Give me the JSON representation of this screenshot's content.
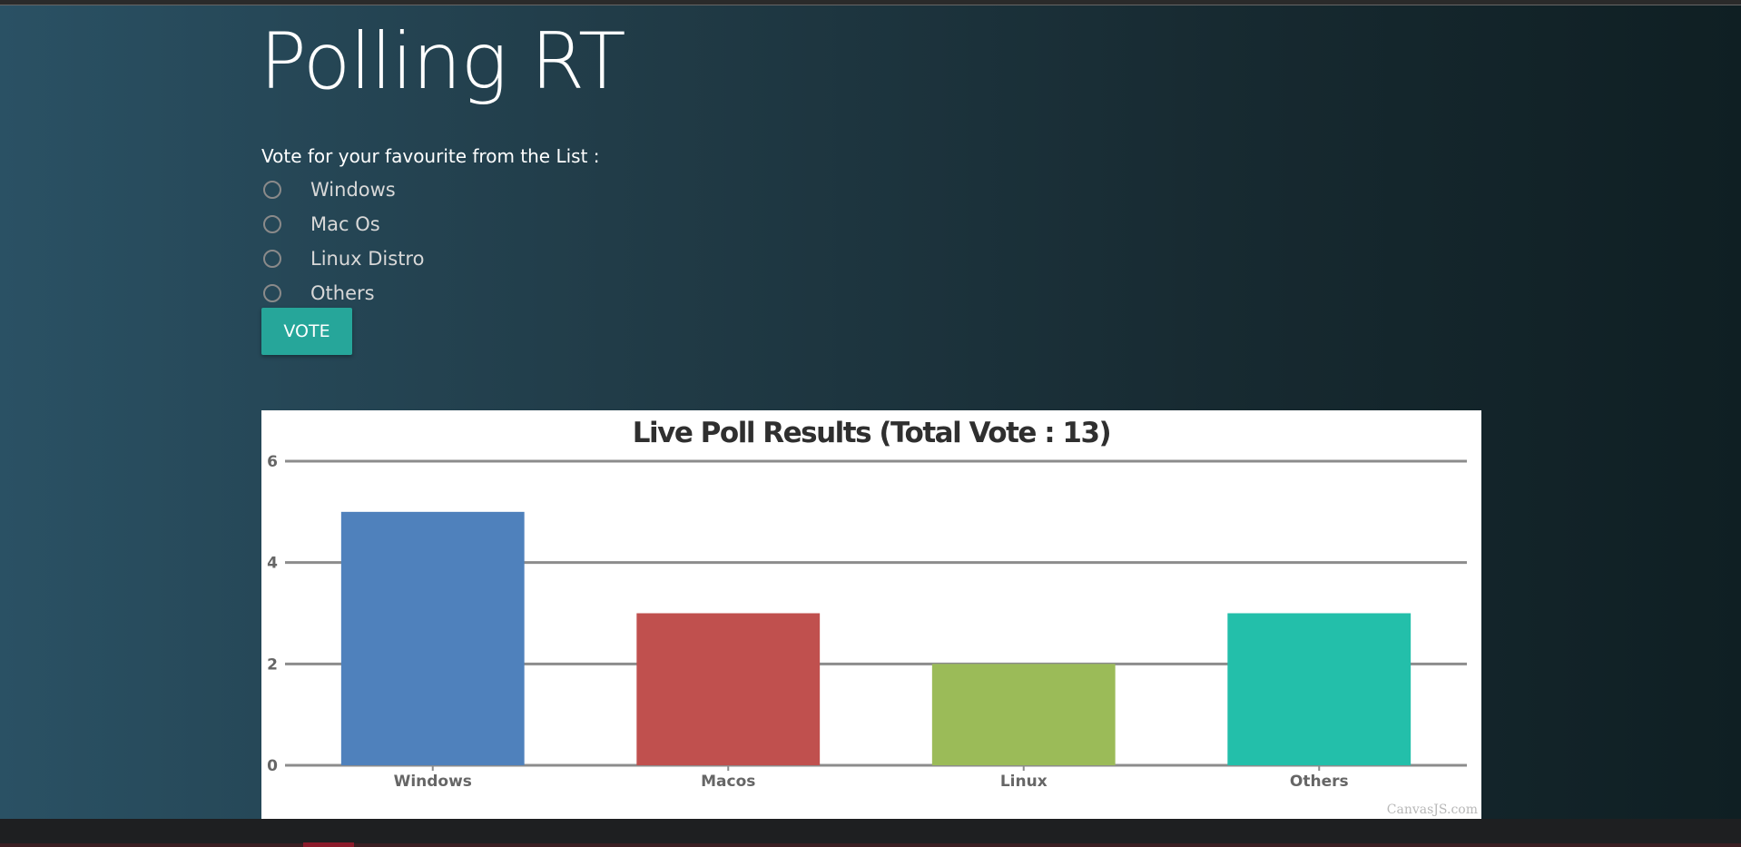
{
  "app": {
    "title": "Polling RT"
  },
  "poll": {
    "prompt": "Vote for your favourite from the List :",
    "options": [
      {
        "label": "Windows"
      },
      {
        "label": "Mac Os"
      },
      {
        "label": "Linux Distro"
      },
      {
        "label": "Others"
      }
    ],
    "vote_label": "VOTE",
    "button_color": "#26a69a"
  },
  "chart_data": {
    "type": "bar",
    "title": "Live Poll Results (Total Vote : 13)",
    "categories": [
      "Windows",
      "Macos",
      "Linux",
      "Others"
    ],
    "values": [
      5,
      3,
      2,
      3
    ],
    "colors": [
      "#4f81bc",
      "#c0504e",
      "#9bbb58",
      "#23bfaa"
    ],
    "ylim": [
      0,
      6
    ],
    "yticks": [
      0,
      2,
      4,
      6
    ],
    "xlabel": "",
    "ylabel": "",
    "grid": true,
    "credit": "CanvasJS.com"
  }
}
